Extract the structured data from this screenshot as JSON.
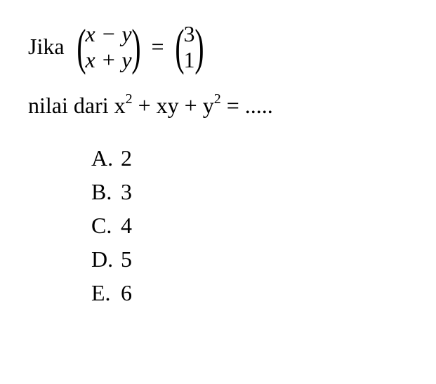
{
  "colors": {
    "background": "#ffffff",
    "text": "#000000"
  },
  "typography": {
    "font_family": "Times New Roman",
    "base_fontsize": 32,
    "superscript_fontsize": 20
  },
  "problem": {
    "prefix": "Jika",
    "matrix_left": {
      "row1": "x − y",
      "row2": "x + y"
    },
    "equals": "=",
    "matrix_right": {
      "row1": "3",
      "row2": "1"
    },
    "question_prefix": "nilai dari ",
    "expression_parts": {
      "x": "x",
      "exp2a": "2",
      "plus1": " + xy + ",
      "y": "y",
      "exp2b": "2",
      "eq_dots": " = ....."
    }
  },
  "options": [
    {
      "label": "A.",
      "value": "2"
    },
    {
      "label": "B.",
      "value": "3"
    },
    {
      "label": "C.",
      "value": "4"
    },
    {
      "label": "D.",
      "value": "5"
    },
    {
      "label": "E.",
      "value": "6"
    }
  ]
}
